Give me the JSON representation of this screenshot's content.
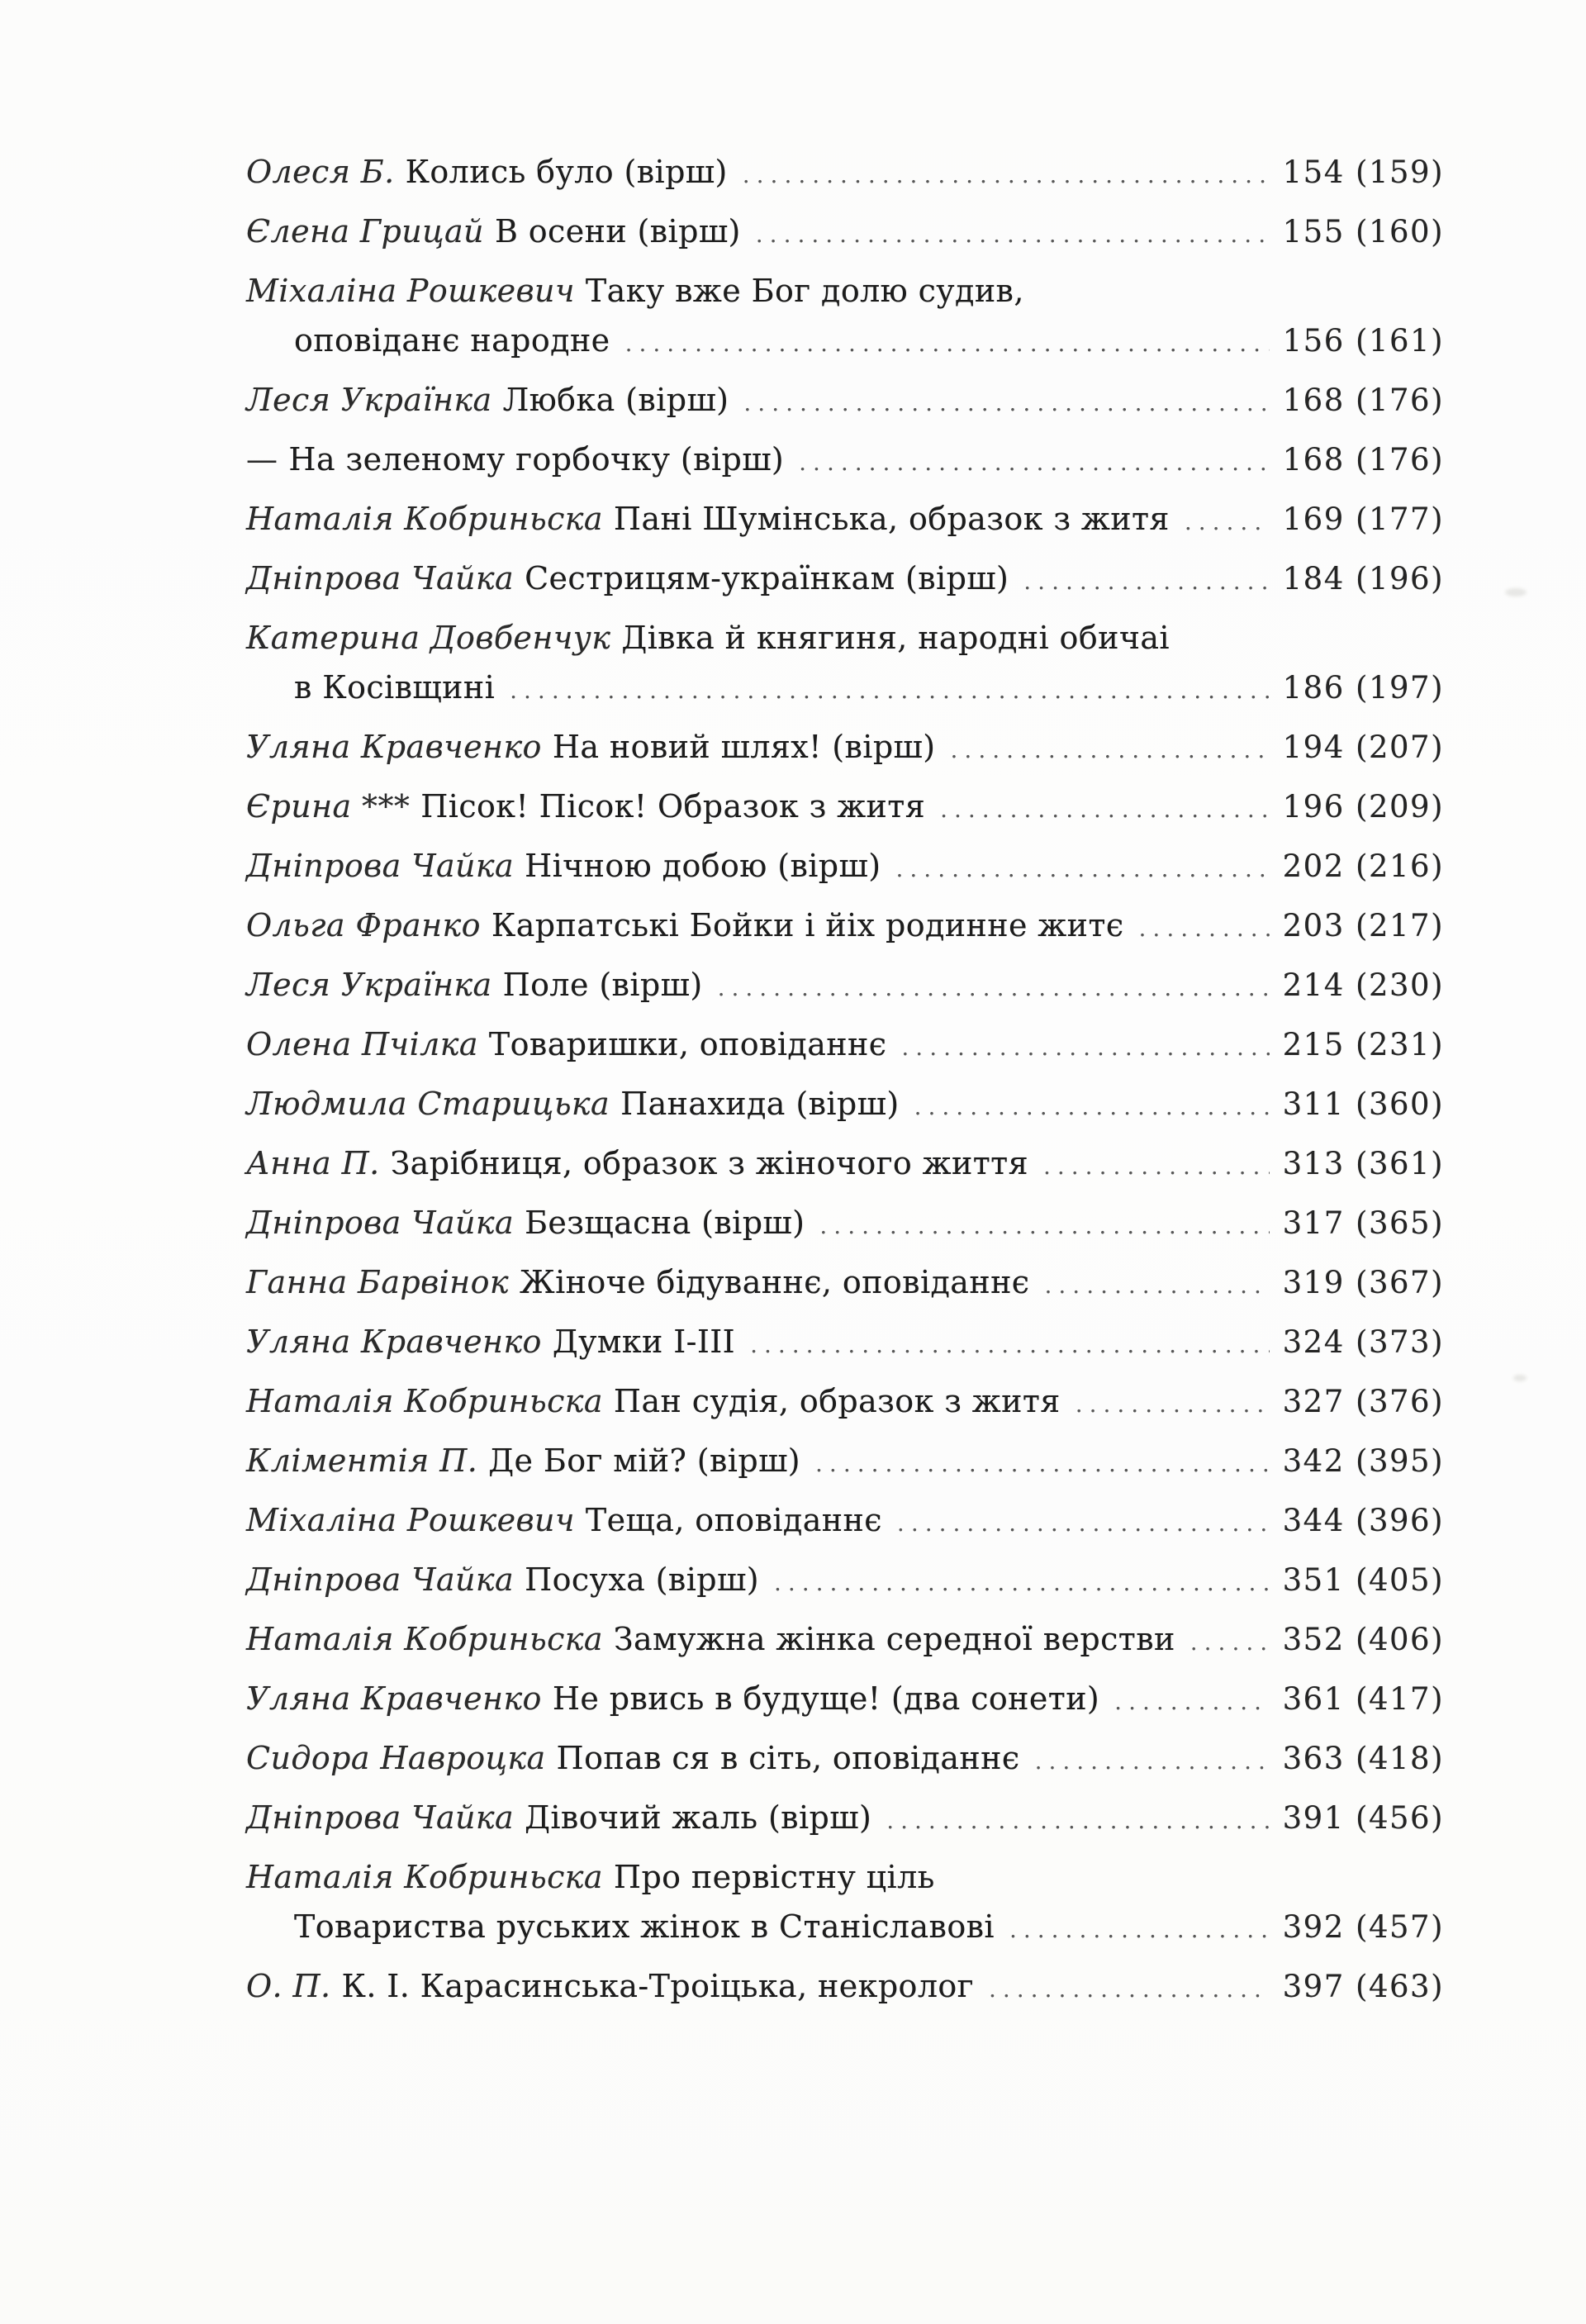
{
  "paper_color": "#fcfcfb",
  "ink_color": "#1d1d1d",
  "toc": {
    "entries": [
      {
        "author": "Олеся Б.",
        "title": "Колись було (вірш)",
        "pages": "154 (159)"
      },
      {
        "author": "Єлена Грицай",
        "title": "В осени (вірш)",
        "pages": "155 (160)"
      },
      {
        "author": "Міхаліна Рошкевич",
        "title": "Таку вже Бог долю судив,",
        "continuation": "оповіданє народне",
        "pages": "156 (161)"
      },
      {
        "author": "Леся Українка",
        "title": "Любка (вірш)",
        "pages": "168 (176)"
      },
      {
        "author": "—",
        "title": "На зеленому горбочку (вірш)",
        "pages": "168 (176)"
      },
      {
        "author": "Наталія Кобриньска",
        "title": "Пані Шумінська, образок з житя",
        "pages": "169 (177)"
      },
      {
        "author": "Дніпрова Чайка",
        "title": "Сестрицям-українкам (вірш)",
        "pages": "184 (196)"
      },
      {
        "author": "Катерина Довбенчук",
        "title": "Дівка й княгиня, народні обичаі",
        "continuation": "в Косівщині",
        "pages": "186 (197)"
      },
      {
        "author": "Уляна Кравченко",
        "title": "На новий шлях! (вірш)",
        "pages": "194 (207)"
      },
      {
        "author": "Єрина ***",
        "title": "Пісок! Пісок! Образок з житя",
        "pages": "196 (209)"
      },
      {
        "author": "Дніпрова Чайка",
        "title": "Нічною добою (вірш)",
        "pages": "202 (216)"
      },
      {
        "author": "Ольга Франко",
        "title": "Карпатські Бойки і йіх родинне житє",
        "pages": "203 (217)"
      },
      {
        "author": "Леся Українка",
        "title": "Поле (вірш)",
        "pages": "214 (230)"
      },
      {
        "author": "Олена Пчілка",
        "title": "Товаришки, оповіданнє",
        "pages": "215 (231)"
      },
      {
        "author": "Людмила Старицька",
        "title": "Панахида (вірш)",
        "pages": "311 (360)"
      },
      {
        "author": "Анна П.",
        "title": "Зарібниця, образок з жіночого життя",
        "pages": "313 (361)"
      },
      {
        "author": "Дніпрова Чайка",
        "title": "Безщасна (вірш)",
        "pages": "317 (365)"
      },
      {
        "author": "Ганна Барвінок",
        "title": "Жіноче бідуваннє, оповіданнє",
        "pages": "319 (367)"
      },
      {
        "author": "Уляна Кравченко",
        "title": "Думки I-III",
        "pages": "324 (373)"
      },
      {
        "author": "Наталія Кобриньска",
        "title": "Пан судія, образок з житя",
        "pages": "327 (376)"
      },
      {
        "author": "Кліментія П.",
        "title": "Де Бог мій? (вірш)",
        "pages": "342 (395)"
      },
      {
        "author": "Міхаліна Рошкевич",
        "title": "Теща, оповіданнє",
        "pages": "344 (396)"
      },
      {
        "author": "Дніпрова Чайка",
        "title": "Посуха (вірш)",
        "pages": "351 (405)"
      },
      {
        "author": "Наталія Кобриньска",
        "title": "Замужна жінка середної верстви",
        "pages": "352 (406)"
      },
      {
        "author": "Уляна Кравченко",
        "title": "Не рвись в будуще! (два сонети)",
        "pages": "361 (417)"
      },
      {
        "author": "Сидора Навроцка",
        "title": "Попав ся в сіть, оповіданнє",
        "pages": "363 (418)"
      },
      {
        "author": "Дніпрова Чайка",
        "title": "Дівочий жаль (вірш)",
        "pages": "391 (456)"
      },
      {
        "author": "Наталія Кобриньска",
        "title": "Про первістну ціль",
        "continuation": "Товариства руських жінок в Станіславові",
        "pages": "392 (457)"
      },
      {
        "author": "О. П.",
        "title": "К. І. Карасинська-Троіцька, некролог",
        "pages": "397 (463)"
      }
    ]
  }
}
